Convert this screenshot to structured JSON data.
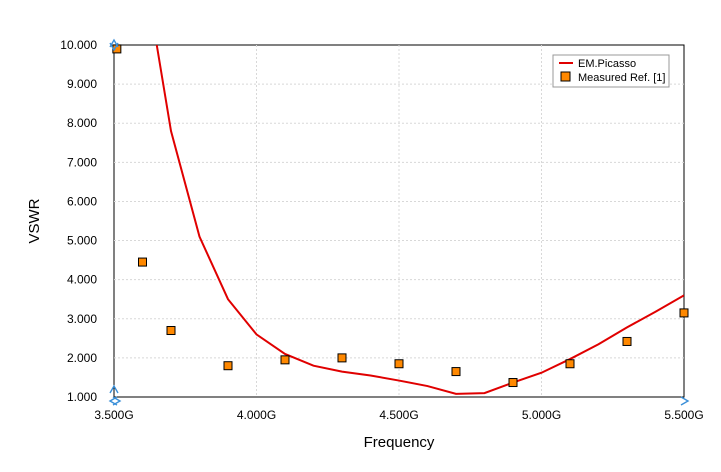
{
  "chart_data": {
    "type": "line",
    "title": "",
    "xlabel": "Frequency",
    "ylabel": "VSWR",
    "xlim": [
      3.5,
      5.5
    ],
    "ylim": [
      1.0,
      10.0
    ],
    "x_ticks": [
      3.5,
      4.0,
      4.5,
      5.0,
      5.5
    ],
    "x_tick_labels": [
      "3.500G",
      "4.000G",
      "4.500G",
      "5.000G",
      "5.500G"
    ],
    "y_ticks": [
      1,
      2,
      3,
      4,
      5,
      6,
      7,
      8,
      9,
      10
    ],
    "y_tick_labels": [
      "1.000",
      "2.000",
      "3.000",
      "4.000",
      "5.000",
      "6.000",
      "7.000",
      "8.000",
      "9.000",
      "10.000"
    ],
    "grid": true,
    "legend_position": "top-right",
    "series": [
      {
        "name": "EM.Picasso",
        "kind": "line",
        "color": "#e00000",
        "x": [
          3.65,
          3.7,
          3.8,
          3.9,
          4.0,
          4.1,
          4.2,
          4.3,
          4.4,
          4.5,
          4.6,
          4.7,
          4.8,
          4.9,
          5.0,
          5.1,
          5.2,
          5.3,
          5.4,
          5.5
        ],
        "y": [
          10.0,
          7.8,
          5.1,
          3.5,
          2.6,
          2.1,
          1.8,
          1.65,
          1.55,
          1.42,
          1.28,
          1.08,
          1.1,
          1.37,
          1.62,
          1.97,
          2.35,
          2.78,
          3.18,
          3.6
        ]
      },
      {
        "name": "Measured Ref. [1]",
        "kind": "marker",
        "color": "#ff8800",
        "x": [
          3.51,
          3.6,
          3.7,
          3.9,
          4.1,
          4.3,
          4.5,
          4.7,
          4.9,
          5.1,
          5.3,
          5.5
        ],
        "y": [
          9.9,
          4.45,
          2.7,
          1.8,
          1.95,
          2.0,
          1.85,
          1.65,
          1.37,
          1.85,
          2.42,
          3.15
        ]
      }
    ]
  }
}
